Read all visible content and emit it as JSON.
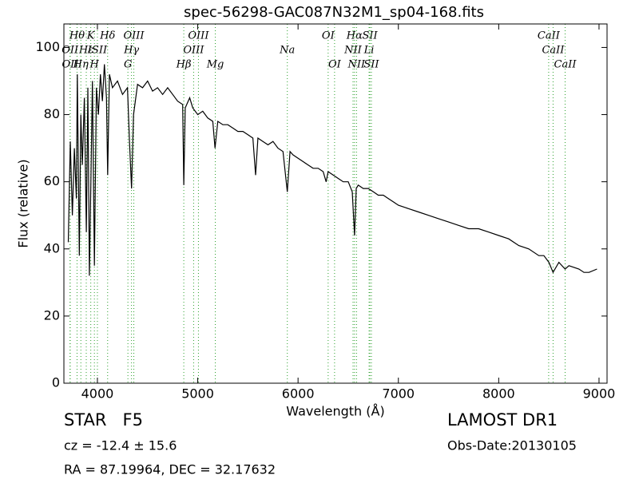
{
  "chart_data": {
    "type": "line",
    "title": "spec-56298-GAC087N32M1_sp04-168.fits",
    "xlabel": "Wavelength (Å)",
    "ylabel": "Flux (relative)",
    "xlim": [
      3666,
      9080
    ],
    "ylim": [
      0,
      107
    ],
    "xticks": [
      4000,
      5000,
      6000,
      7000,
      8000,
      9000
    ],
    "yticks": [
      0,
      20,
      40,
      60,
      80,
      100
    ],
    "line_color": "#2ca02c",
    "x": [
      3710,
      3730,
      3750,
      3770,
      3790,
      3800,
      3820,
      3835,
      3850,
      3870,
      3890,
      3905,
      3920,
      3935,
      3950,
      3970,
      3990,
      4010,
      4030,
      4050,
      4070,
      4090,
      4102,
      4120,
      4150,
      4200,
      4250,
      4300,
      4320,
      4340,
      4360,
      4400,
      4450,
      4500,
      4550,
      4600,
      4650,
      4700,
      4750,
      4800,
      4850,
      4861,
      4875,
      4920,
      4950,
      5000,
      5050,
      5100,
      5150,
      5172,
      5200,
      5250,
      5300,
      5350,
      5400,
      5450,
      5500,
      5550,
      5577,
      5600,
      5650,
      5700,
      5750,
      5800,
      5850,
      5893,
      5920,
      5950,
      6000,
      6050,
      6100,
      6150,
      6200,
      6250,
      6280,
      6300,
      6350,
      6400,
      6450,
      6500,
      6540,
      6563,
      6580,
      6600,
      6650,
      6700,
      6750,
      6800,
      6850,
      6900,
      6950,
      7000,
      7100,
      7200,
      7300,
      7400,
      7500,
      7600,
      7700,
      7800,
      7900,
      8000,
      8100,
      8200,
      8300,
      8400,
      8450,
      8500,
      8542,
      8600,
      8662,
      8700,
      8800,
      8850,
      8900,
      8980
    ],
    "series": [
      {
        "name": "spectrum",
        "color": "#000000",
        "values": [
          42,
          72,
          50,
          70,
          55,
          92,
          38,
          80,
          65,
          85,
          45,
          88,
          32,
          60,
          90,
          35,
          88,
          80,
          92,
          84,
          95,
          85,
          62,
          92,
          88,
          90,
          86,
          88,
          72,
          58,
          80,
          89,
          88,
          90,
          87,
          88,
          86,
          88,
          86,
          84,
          83,
          59,
          82,
          85,
          82,
          80,
          81,
          79,
          78,
          70,
          78,
          77,
          77,
          76,
          75,
          75,
          74,
          73,
          62,
          73,
          72,
          71,
          72,
          70,
          69,
          57,
          69,
          68,
          67,
          66,
          65,
          64,
          64,
          63,
          60,
          63,
          62,
          61,
          60,
          60,
          57,
          44,
          58,
          59,
          58,
          58,
          57,
          56,
          56,
          55,
          54,
          53,
          52,
          51,
          50,
          49,
          48,
          47,
          46,
          46,
          45,
          44,
          43,
          41,
          40,
          38,
          38,
          36,
          33,
          36,
          34,
          35,
          34,
          33,
          33,
          34
        ]
      }
    ],
    "lines": [
      {
        "label": "Hθ",
        "wavelength": 3797
      },
      {
        "label": "K",
        "wavelength": 3934
      },
      {
        "label": "Hδ",
        "wavelength": 4102
      },
      {
        "label": "OIII",
        "wavelength": 4363
      },
      {
        "label": "OIII",
        "wavelength": 5007
      },
      {
        "label": "OI",
        "wavelength": 6300
      },
      {
        "label": "Hα",
        "wavelength": 6563
      },
      {
        "label": "SII",
        "wavelength": 6716
      },
      {
        "label": "CaII",
        "wavelength": 8498
      },
      {
        "label": "OII",
        "wavelength": 3727
      },
      {
        "label": "Hε",
        "wavelength": 3889
      },
      {
        "label": "ISII",
        "wavelength": 4000
      },
      {
        "label": "Hγ",
        "wavelength": 4340
      },
      {
        "label": "OIII",
        "wavelength": 4959
      },
      {
        "label": "Na",
        "wavelength": 5893
      },
      {
        "label": "NII",
        "wavelength": 6548
      },
      {
        "label": "Li",
        "wavelength": 6708
      },
      {
        "label": "CaII",
        "wavelength": 8542
      },
      {
        "label": "OII",
        "wavelength": 3729
      },
      {
        "label": "Hη",
        "wavelength": 3835
      },
      {
        "label": "H",
        "wavelength": 3970
      },
      {
        "label": "G",
        "wavelength": 4304
      },
      {
        "label": "Hβ",
        "wavelength": 4861
      },
      {
        "label": "Mg",
        "wavelength": 5175
      },
      {
        "label": "OI",
        "wavelength": 6364
      },
      {
        "label": "NII",
        "wavelength": 6583
      },
      {
        "label": "SII",
        "wavelength": 6731
      },
      {
        "label": "CaII",
        "wavelength": 8662
      }
    ]
  },
  "info": {
    "object": "STAR   F5",
    "cz": "cz = -12.4 ± 15.6",
    "coords": "RA = 87.19964, DEC = 32.17632",
    "survey": "LAMOST DR1",
    "date": "Obs-Date:20130105"
  }
}
